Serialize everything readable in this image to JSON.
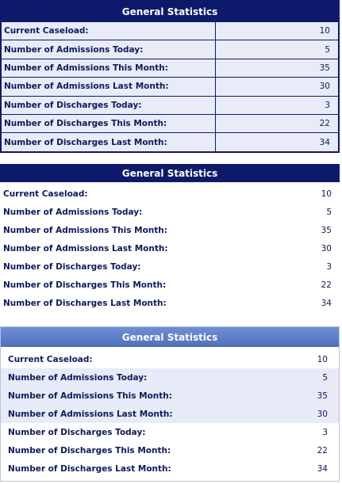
{
  "tables": [
    {
      "title": "General Statistics",
      "rows": [
        [
          "Current Caseload:",
          10
        ],
        [
          "Number of Admissions Today:",
          5
        ],
        [
          "Number of Admissions This Month:",
          35
        ],
        [
          "Number of Admissions Last Month:",
          30
        ],
        [
          "Number of Discharges Today:",
          3
        ],
        [
          "Number of Discharges This Month:",
          22
        ],
        [
          "Number of Discharges Last Month:",
          34
        ]
      ]
    },
    {
      "title": "General Statistics",
      "rows": [
        [
          "Current Caseload:",
          10
        ],
        [
          "Number of Admissions Today:",
          5
        ],
        [
          "Number of Admissions This Month:",
          35
        ],
        [
          "Number of Admissions Last Month:",
          30
        ],
        [
          "Number of Discharges Today:",
          3
        ],
        [
          "Number of Discharges This Month:",
          22
        ],
        [
          "Number of Discharges Last Month:",
          34
        ]
      ]
    },
    {
      "title": "General Statistics",
      "rows": [
        [
          "Current Caseload:",
          10
        ],
        [
          "Number of Admissions Today:",
          5
        ],
        [
          "Number of Admissions This Month:",
          35
        ],
        [
          "Number of Admissions Last Month:",
          30
        ],
        [
          "Number of Discharges Today:",
          3
        ],
        [
          "Number of Discharges This Month:",
          22
        ],
        [
          "Number of Discharges Last Month:",
          34
        ]
      ]
    }
  ]
}
